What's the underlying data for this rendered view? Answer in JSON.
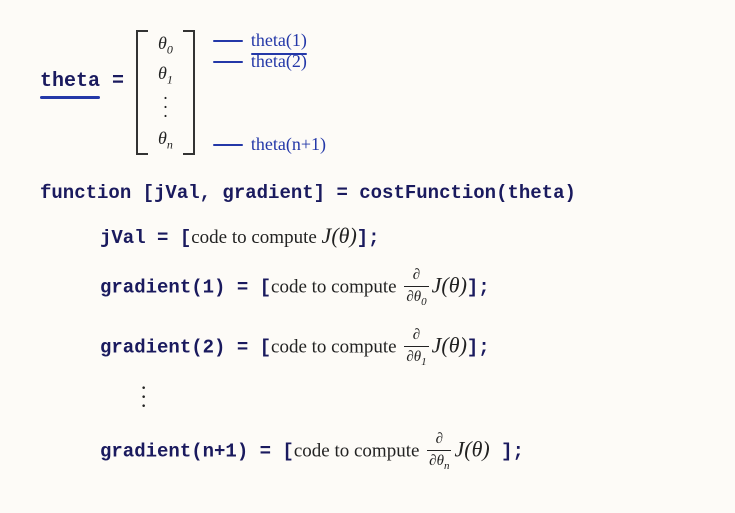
{
  "vector": {
    "label": "theta",
    "equals": "=",
    "entries": {
      "e0": "θ",
      "s0": "0",
      "e1": "θ",
      "s1": "1",
      "en": "θ",
      "sn": "n"
    },
    "annotations": {
      "a1": "theta(1)",
      "a2": "theta(2)",
      "an": "theta(n+1)"
    }
  },
  "code": {
    "sig_a": "function [jVal, gradient] = costFunction(theta)",
    "jval_a": "jVal = [",
    "jval_b": "code to compute ",
    "jval_c": "];",
    "g1_a": "gradient(1) = [",
    "g_common": "code to compute ",
    "g_close": "];",
    "g2_a": "gradient(2) = [",
    "gn_a": "gradient(n+1) = [",
    "gn_close_spaced": "  ];"
  },
  "math": {
    "J": "J",
    "theta": "θ",
    "lp": "(",
    "rp": ")",
    "partial": "∂",
    "d0": "0",
    "d1": "1",
    "dn": "n"
  }
}
